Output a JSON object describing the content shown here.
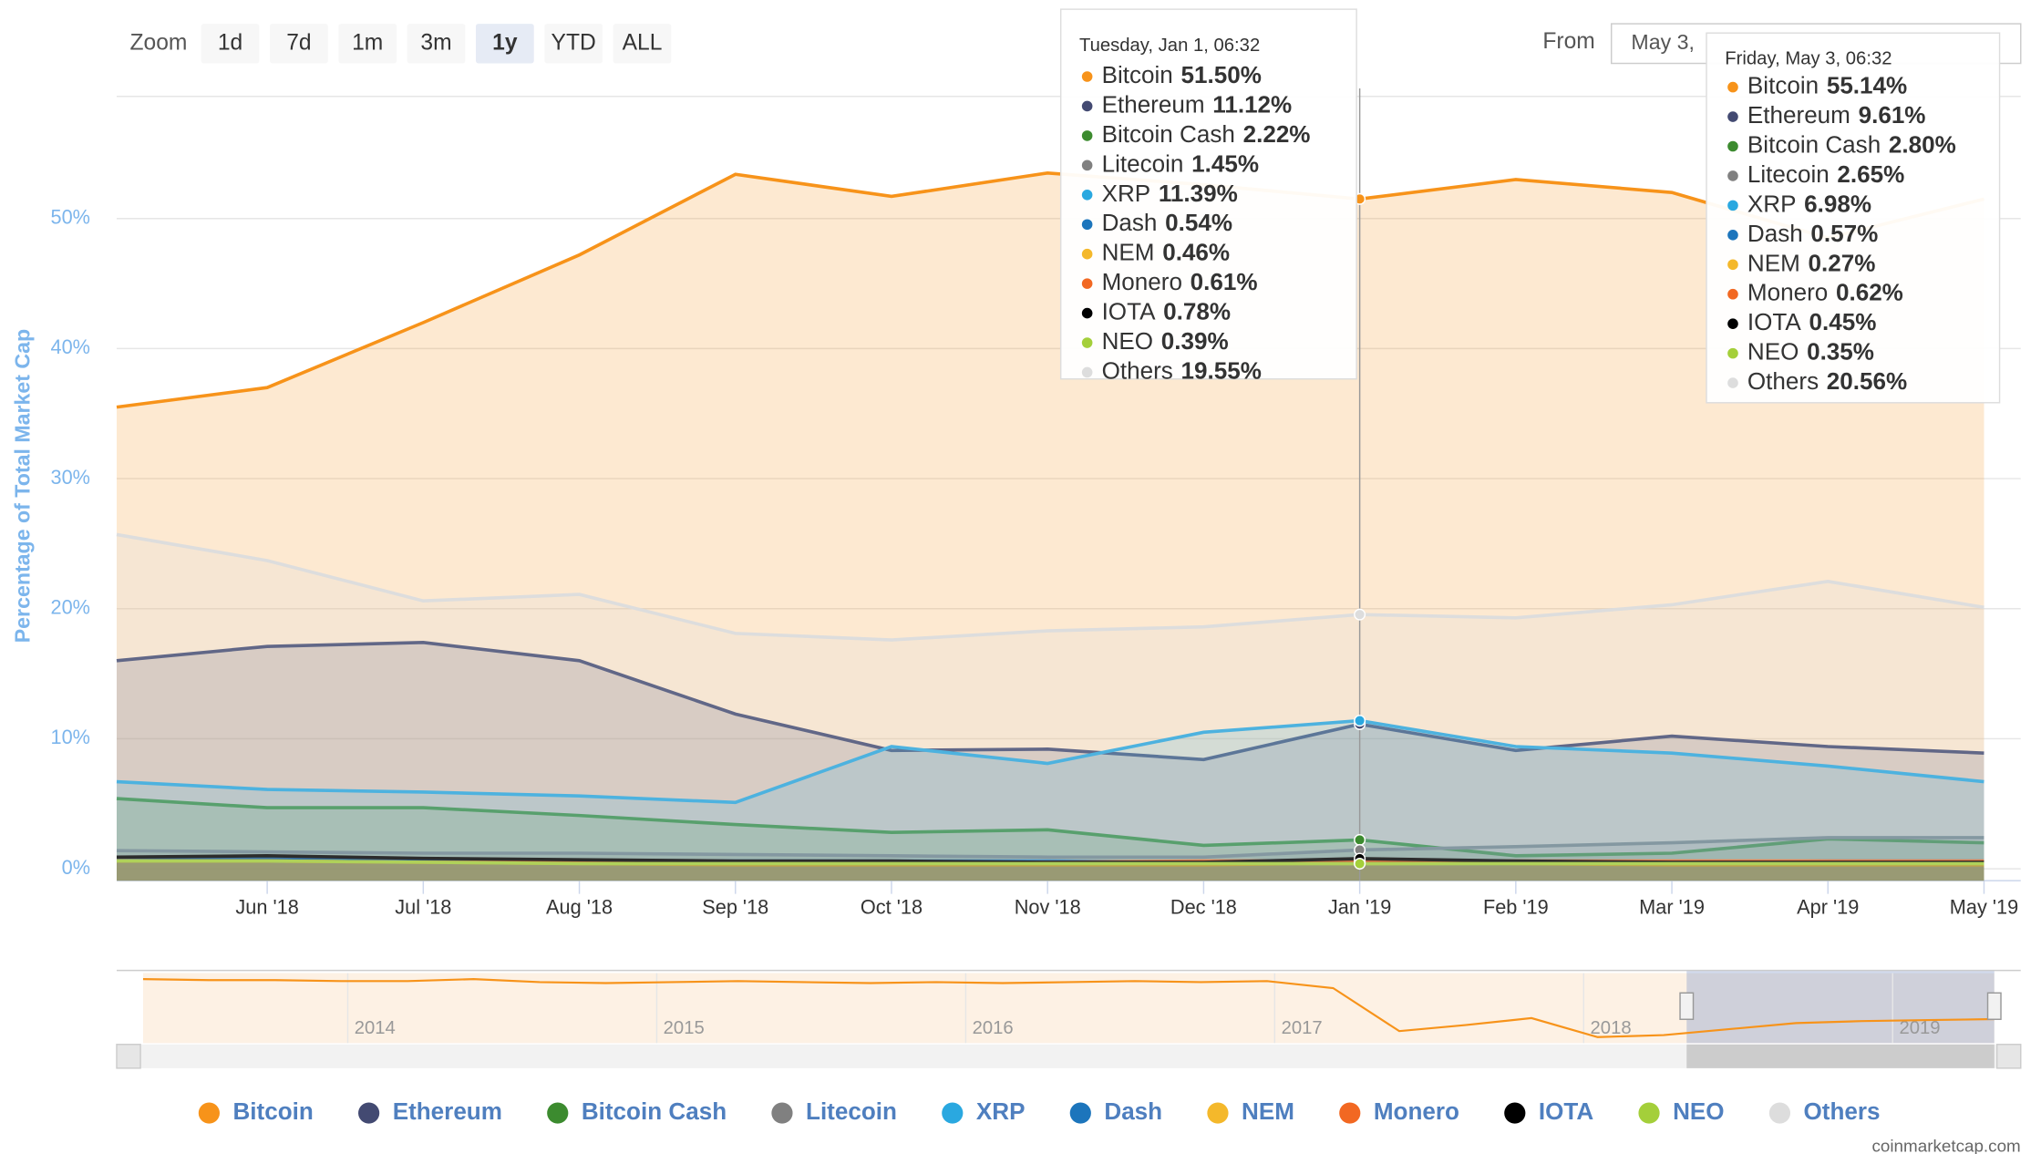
{
  "chart_data": {
    "type": "area",
    "y_axis_label": "Percentage of Total Market Cap",
    "categories": [
      null,
      "Jun '18",
      "Jul '18",
      "Aug '18",
      "Sep '18",
      "Oct '18",
      "Nov '18",
      "Dec '18",
      "Jan '19",
      "Feb '19",
      "Mar '19",
      "Apr '19",
      "May '19"
    ],
    "ylim": [
      0,
      60
    ],
    "yticks": [
      {
        "value": 0,
        "label": "0%"
      },
      {
        "value": 10,
        "label": "10%"
      },
      {
        "value": 20,
        "label": "20%"
      },
      {
        "value": 30,
        "label": "30%"
      },
      {
        "value": 40,
        "label": "40%"
      },
      {
        "value": 50,
        "label": "50%"
      }
    ],
    "grid": true,
    "series": [
      {
        "name": "Bitcoin",
        "color": "#f7931a",
        "values": [
          35.5,
          37.0,
          42.0,
          47.2,
          53.4,
          51.7,
          53.5,
          52.6,
          51.5,
          53.0,
          52.0,
          48.5,
          51.5
        ]
      },
      {
        "name": "Ethereum",
        "color": "#434a72",
        "values": [
          16.0,
          17.1,
          17.4,
          16.0,
          11.9,
          9.1,
          9.2,
          8.4,
          11.12,
          9.1,
          10.2,
          9.4,
          8.9
        ]
      },
      {
        "name": "Bitcoin Cash",
        "color": "#3c8b2f",
        "values": [
          5.4,
          4.7,
          4.7,
          4.1,
          3.4,
          2.8,
          3.0,
          1.8,
          2.22,
          1.0,
          1.2,
          2.3,
          2.0
        ]
      },
      {
        "name": "Litecoin",
        "color": "#808080",
        "values": [
          1.4,
          1.3,
          1.2,
          1.2,
          1.1,
          1.0,
          0.9,
          0.9,
          1.45,
          1.7,
          2.0,
          2.4,
          2.4
        ]
      },
      {
        "name": "XRP",
        "color": "#2aa8e0",
        "values": [
          6.7,
          6.1,
          5.9,
          5.6,
          5.1,
          9.4,
          8.1,
          10.5,
          11.39,
          9.4,
          8.9,
          7.9,
          6.7
        ]
      },
      {
        "name": "Dash",
        "color": "#1c75bc",
        "values": [
          0.9,
          0.8,
          0.7,
          0.6,
          0.6,
          0.6,
          0.6,
          0.5,
          0.54,
          0.5,
          0.5,
          0.6,
          0.6
        ]
      },
      {
        "name": "NEM",
        "color": "#f4b82b",
        "values": [
          0.6,
          0.6,
          0.5,
          0.4,
          0.3,
          0.3,
          0.3,
          0.3,
          0.46,
          0.4,
          0.3,
          0.3,
          0.3
        ]
      },
      {
        "name": "Monero",
        "color": "#f26822",
        "values": [
          0.6,
          0.6,
          0.5,
          0.5,
          0.5,
          0.5,
          0.5,
          0.6,
          0.61,
          0.6,
          0.6,
          0.6,
          0.6
        ]
      },
      {
        "name": "IOTA",
        "color": "#000000",
        "values": [
          0.9,
          1.0,
          0.8,
          0.7,
          0.6,
          0.6,
          0.5,
          0.5,
          0.78,
          0.6,
          0.5,
          0.5,
          0.5
        ]
      },
      {
        "name": "NEO",
        "color": "#a4cf3a",
        "values": [
          0.6,
          0.6,
          0.5,
          0.4,
          0.4,
          0.4,
          0.4,
          0.4,
          0.39,
          0.4,
          0.4,
          0.4,
          0.4
        ]
      },
      {
        "name": "Others",
        "color": "#dddddd",
        "values": [
          25.7,
          23.7,
          20.6,
          21.1,
          18.1,
          17.6,
          18.3,
          18.6,
          19.55,
          19.3,
          20.3,
          22.1,
          20.1
        ]
      }
    ],
    "tooltips": [
      {
        "title": "Tuesday, Jan 1, 06:32",
        "items": [
          {
            "name": "Bitcoin",
            "value": 51.5,
            "label": "51.50%"
          },
          {
            "name": "Ethereum",
            "value": 11.12,
            "label": "11.12%"
          },
          {
            "name": "Bitcoin Cash",
            "value": 2.22,
            "label": "2.22%"
          },
          {
            "name": "Litecoin",
            "value": 1.45,
            "label": "1.45%"
          },
          {
            "name": "XRP",
            "value": 11.39,
            "label": "11.39%"
          },
          {
            "name": "Dash",
            "value": 0.54,
            "label": "0.54%"
          },
          {
            "name": "NEM",
            "value": 0.46,
            "label": "0.46%"
          },
          {
            "name": "Monero",
            "value": 0.61,
            "label": "0.61%"
          },
          {
            "name": "IOTA",
            "value": 0.78,
            "label": "0.78%"
          },
          {
            "name": "NEO",
            "value": 0.39,
            "label": "0.39%"
          },
          {
            "name": "Others",
            "value": 19.55,
            "label": "19.55%"
          }
        ]
      },
      {
        "title": "Friday, May 3, 06:32",
        "items": [
          {
            "name": "Bitcoin",
            "value": 55.14,
            "label": "55.14%"
          },
          {
            "name": "Ethereum",
            "value": 9.61,
            "label": "9.61%"
          },
          {
            "name": "Bitcoin Cash",
            "value": 2.8,
            "label": "2.80%"
          },
          {
            "name": "Litecoin",
            "value": 2.65,
            "label": "2.65%"
          },
          {
            "name": "XRP",
            "value": 6.98,
            "label": "6.98%"
          },
          {
            "name": "Dash",
            "value": 0.57,
            "label": "0.57%"
          },
          {
            "name": "NEM",
            "value": 0.27,
            "label": "0.27%"
          },
          {
            "name": "Monero",
            "value": 0.62,
            "label": "0.62%"
          },
          {
            "name": "IOTA",
            "value": 0.45,
            "label": "0.45%"
          },
          {
            "name": "NEO",
            "value": 0.35,
            "label": "0.35%"
          },
          {
            "name": "Others",
            "value": 20.56,
            "label": "20.56%"
          }
        ]
      }
    ],
    "zoom": {
      "label": "Zoom",
      "buttons": [
        "1d",
        "7d",
        "1m",
        "3m",
        "1y",
        "YTD",
        "ALL"
      ],
      "selected": 4
    },
    "range": {
      "label": "From",
      "value": "May 3,"
    },
    "navigator": {
      "ticks": [
        "2014",
        "2015",
        "2016",
        "2017",
        "2018",
        "2019"
      ],
      "ylim": [
        30,
        100
      ],
      "values": [
        94,
        93,
        93,
        92,
        92,
        94,
        91,
        90,
        91,
        92,
        91,
        90,
        91,
        90,
        91,
        92,
        91,
        92,
        85,
        42,
        48,
        55,
        36,
        38,
        44,
        50,
        52,
        53,
        54
      ]
    },
    "credit": "coinmarketcap.com"
  }
}
